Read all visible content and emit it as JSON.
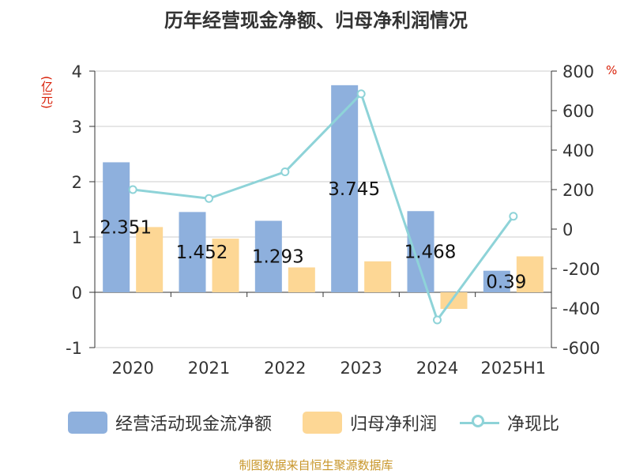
{
  "chart_data": {
    "type": "bar",
    "title": "历年经营现金净额、归母净利润情况",
    "ylabel_left": "(亿元)",
    "ylabel_right": "%",
    "categories": [
      "2020",
      "2021",
      "2022",
      "2023",
      "2024",
      "2025H1"
    ],
    "left_axis": {
      "ylim": [
        -1,
        4
      ],
      "ticks": [
        "-1",
        "0",
        "1",
        "2",
        "3",
        "4"
      ]
    },
    "right_axis": {
      "ylim": [
        -600,
        800
      ],
      "ticks": [
        "-600",
        "-400",
        "-200",
        "0",
        "200",
        "400",
        "600",
        "800"
      ]
    },
    "series": [
      {
        "name": "经营活动现金流净额",
        "type": "bar",
        "axis": "left",
        "values": [
          2.351,
          1.452,
          1.293,
          3.745,
          1.468,
          0.39
        ],
        "labels": [
          "2.351",
          "1.452",
          "1.293",
          "3.745",
          "1.468",
          "0.39"
        ],
        "color": "#8eb0dd"
      },
      {
        "name": "归母净利润",
        "type": "bar",
        "axis": "left",
        "values": [
          1.18,
          0.97,
          0.45,
          0.56,
          -0.3,
          0.65
        ],
        "color": "#fdd795"
      },
      {
        "name": "净现比",
        "type": "line",
        "axis": "right",
        "values": [
          200,
          155,
          290,
          685,
          -460,
          65
        ],
        "color": "#8ed3d8"
      }
    ],
    "legend_position": "bottom",
    "grid": true
  },
  "source": "制图数据来自恒生聚源数据库"
}
